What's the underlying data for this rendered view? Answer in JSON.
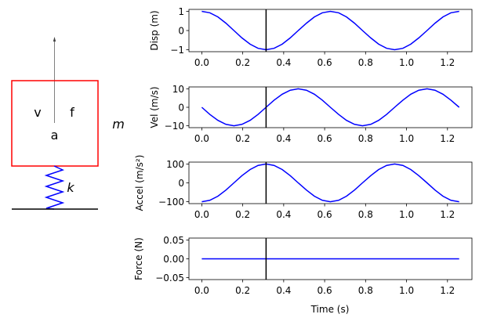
{
  "diagram": {
    "mass_label": "m",
    "spring_label": "k",
    "velocity_label": "v",
    "force_label": "f",
    "accel_label": "a",
    "mass_color": "#ff0000",
    "spring_color": "#0000ff",
    "arrow_color": "#808080"
  },
  "chart_data": {
    "type": "line",
    "xlabel": "Time (s)",
    "xlim": [
      -0.0628,
      1.3195
    ],
    "xticks": [
      0.0,
      0.2,
      0.4,
      0.6,
      0.8,
      1.0,
      1.2
    ],
    "xtick_labels": [
      "0.0",
      "0.2",
      "0.4",
      "0.6",
      "0.8",
      "1.0",
      "1.2"
    ],
    "cursor_time": 0.314,
    "line_color": "#0000ff",
    "cursor_color": "#000000",
    "grid": false,
    "x": [
      0,
      0.039,
      0.079,
      0.118,
      0.157,
      0.196,
      0.236,
      0.275,
      0.314,
      0.353,
      0.393,
      0.432,
      0.471,
      0.511,
      0.55,
      0.589,
      0.628,
      0.668,
      0.707,
      0.746,
      0.785,
      0.825,
      0.864,
      0.903,
      0.942,
      0.982,
      1.021,
      1.06,
      1.1,
      1.139,
      1.178,
      1.217,
      1.257
    ],
    "panels": [
      {
        "ylabel": "Disp (m)",
        "ylim": [
          -1.1,
          1.1
        ],
        "yticks": [
          -1,
          0,
          1
        ],
        "ytick_labels": [
          "−1",
          "0",
          "1"
        ],
        "values": [
          1,
          0.924,
          0.707,
          0.383,
          0,
          -0.383,
          -0.707,
          -0.924,
          -1,
          -0.924,
          -0.707,
          -0.383,
          0,
          0.383,
          0.707,
          0.924,
          1,
          0.924,
          0.707,
          0.383,
          0,
          -0.383,
          -0.707,
          -0.924,
          -1,
          -0.924,
          -0.707,
          -0.383,
          0,
          0.383,
          0.707,
          0.924,
          1
        ]
      },
      {
        "ylabel": "Vel (m/s)",
        "ylim": [
          -11,
          11
        ],
        "yticks": [
          -10,
          0,
          10
        ],
        "ytick_labels": [
          "−10",
          "0",
          "10"
        ],
        "values": [
          0,
          -3.83,
          -7.07,
          -9.24,
          -10,
          -9.24,
          -7.07,
          -3.83,
          0,
          3.83,
          7.07,
          9.24,
          10,
          9.24,
          7.07,
          3.83,
          0,
          -3.83,
          -7.07,
          -9.24,
          -10,
          -9.24,
          -7.07,
          -3.83,
          0,
          3.83,
          7.07,
          9.24,
          10,
          9.24,
          7.07,
          3.83,
          0
        ]
      },
      {
        "ylabel": "Accel (m/s²)",
        "ylim": [
          -110,
          110
        ],
        "yticks": [
          -100,
          0,
          100
        ],
        "ytick_labels": [
          "−100",
          "0",
          "100"
        ],
        "values": [
          -100,
          -92.4,
          -70.7,
          -38.3,
          0,
          38.3,
          70.7,
          92.4,
          100,
          92.4,
          70.7,
          38.3,
          0,
          -38.3,
          -70.7,
          -92.4,
          -100,
          -92.4,
          -70.7,
          -38.3,
          0,
          38.3,
          70.7,
          92.4,
          100,
          92.4,
          70.7,
          38.3,
          0,
          -38.3,
          -70.7,
          -92.4,
          -100
        ]
      },
      {
        "ylabel": "Force (N)",
        "ylim": [
          -0.055,
          0.055
        ],
        "yticks": [
          -0.05,
          0,
          0.05
        ],
        "ytick_labels": [
          "−0.05",
          "0.00",
          "0.05"
        ],
        "values": [
          0,
          0,
          0,
          0,
          0,
          0,
          0,
          0,
          0,
          0,
          0,
          0,
          0,
          0,
          0,
          0,
          0,
          0,
          0,
          0,
          0,
          0,
          0,
          0,
          0,
          0,
          0,
          0,
          0,
          0,
          0,
          0,
          0
        ]
      }
    ]
  }
}
